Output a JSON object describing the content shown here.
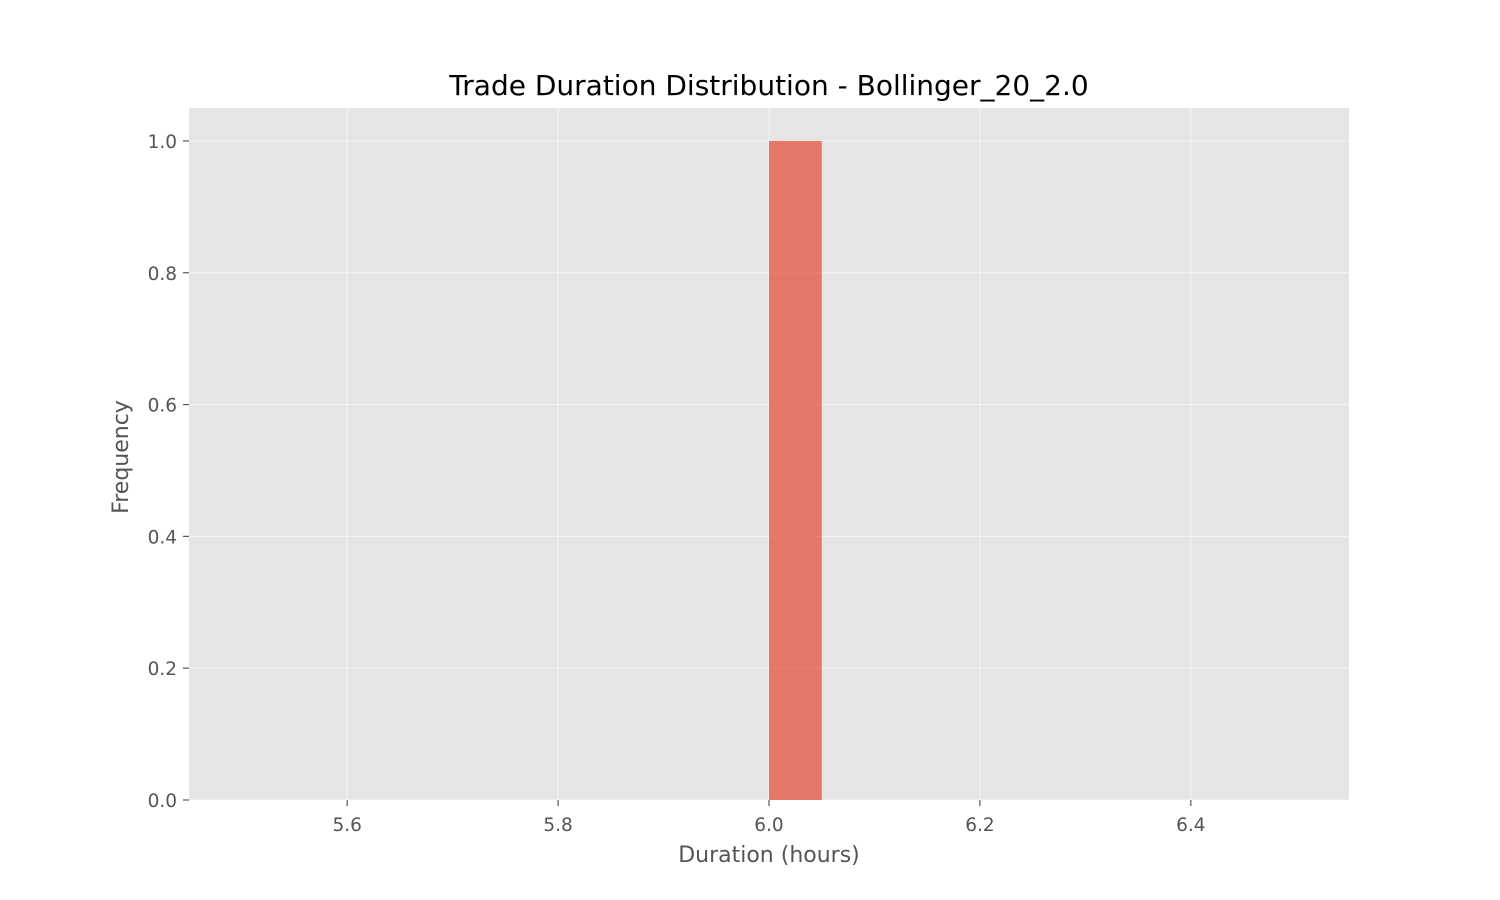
{
  "chart_data": {
    "type": "bar",
    "title": "Trade Duration Distribution - Bollinger_20_2.0",
    "xlabel": "Duration (hours)",
    "ylabel": "Frequency",
    "xlim": [
      5.45,
      6.55
    ],
    "ylim": [
      0,
      1.05
    ],
    "x_ticks": [
      5.6,
      5.8,
      6.0,
      6.2,
      6.4
    ],
    "x_tick_labels": [
      "5.6",
      "5.8",
      "6.0",
      "6.2",
      "6.4"
    ],
    "y_ticks": [
      0.0,
      0.2,
      0.4,
      0.6,
      0.8,
      1.0
    ],
    "y_tick_labels": [
      "0.0",
      "0.2",
      "0.4",
      "0.6",
      "0.8",
      "1.0"
    ],
    "bins": [
      {
        "start": 6.0,
        "end": 6.05,
        "count": 1
      }
    ],
    "grid": true,
    "colors": {
      "plot_background": "#e5e5e5",
      "grid": "#ffffff",
      "bar": "#e24a33",
      "tick_text": "#555555"
    }
  }
}
